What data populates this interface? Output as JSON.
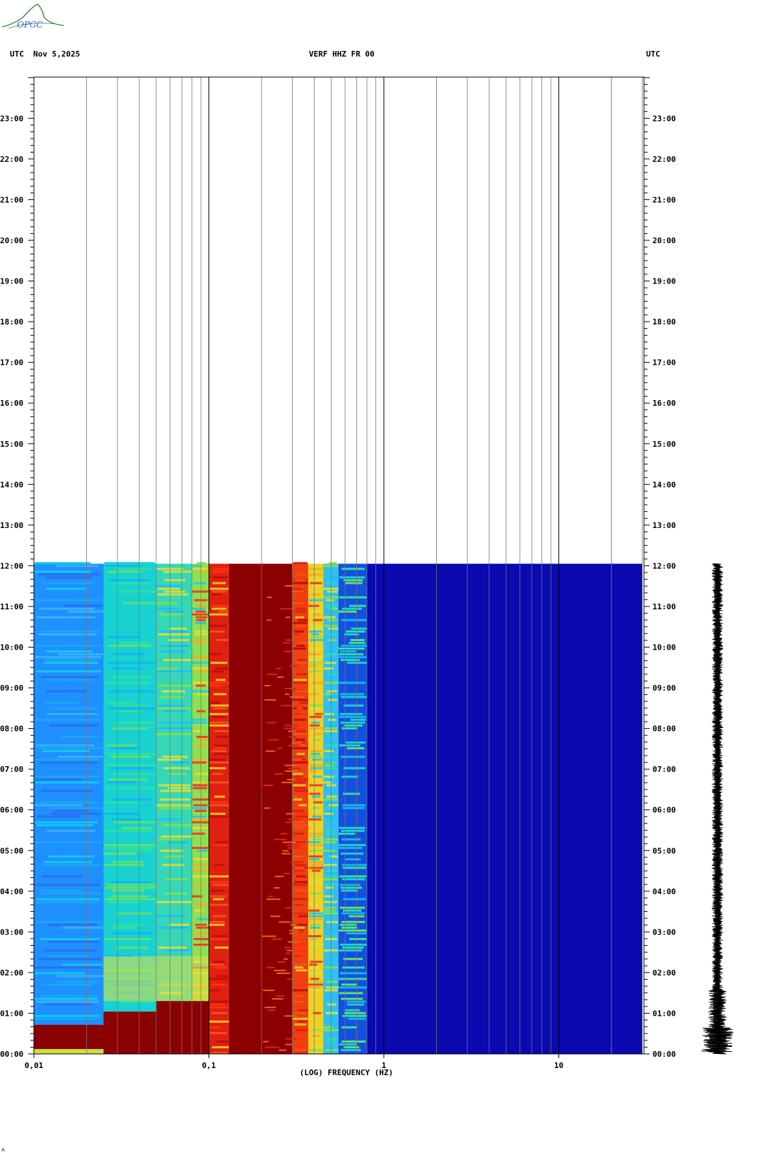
{
  "header": {
    "left_tz": "UTC",
    "date": "Nov 5,2025",
    "station": "VERF HHZ FR 00",
    "right_tz": "UTC"
  },
  "logo": {
    "text": "OPGC",
    "color": "#2e8b3a"
  },
  "corner_mark": "ʌ",
  "chart_data": {
    "type": "heatmap",
    "title": "VERF HHZ FR 00",
    "xlabel": "(LOG) FREQUENCY (HZ)",
    "x_scale": "log",
    "xlim": [
      0.01,
      30
    ],
    "x_ticks": [
      {
        "value": 0.01,
        "label": "0,01"
      },
      {
        "value": 0.1,
        "label": "0,1"
      },
      {
        "value": 1,
        "label": "1"
      },
      {
        "value": 10,
        "label": "10"
      }
    ],
    "y_unit": "hour UTC",
    "ylim": [
      0,
      24
    ],
    "y_ticks": [
      {
        "value": 0,
        "label": "00:00"
      },
      {
        "value": 1,
        "label": "01:00"
      },
      {
        "value": 2,
        "label": "02:00"
      },
      {
        "value": 3,
        "label": "03:00"
      },
      {
        "value": 4,
        "label": "04:00"
      },
      {
        "value": 5,
        "label": "05:00"
      },
      {
        "value": 6,
        "label": "06:00"
      },
      {
        "value": 7,
        "label": "07:00"
      },
      {
        "value": 8,
        "label": "08:00"
      },
      {
        "value": 9,
        "label": "09:00"
      },
      {
        "value": 10,
        "label": "10:00"
      },
      {
        "value": 11,
        "label": "11:00"
      },
      {
        "value": 12,
        "label": "12:00"
      },
      {
        "value": 13,
        "label": "13:00"
      },
      {
        "value": 14,
        "label": "14:00"
      },
      {
        "value": 15,
        "label": "15:00"
      },
      {
        "value": 16,
        "label": "16:00"
      },
      {
        "value": 17,
        "label": "17:00"
      },
      {
        "value": 18,
        "label": "18:00"
      },
      {
        "value": 19,
        "label": "19:00"
      },
      {
        "value": 20,
        "label": "20:00"
      },
      {
        "value": 21,
        "label": "21:00"
      },
      {
        "value": 22,
        "label": "22:00"
      },
      {
        "value": 23,
        "label": "23:00"
      }
    ],
    "data_end_hour": 12.05,
    "grid": true,
    "frequency_bands": [
      {
        "f_min": 0.01,
        "f_max": 0.025,
        "level": "low",
        "color": "#1e90ff"
      },
      {
        "f_min": 0.025,
        "f_max": 0.05,
        "level": "low-mid",
        "color": "#18d2d2"
      },
      {
        "f_min": 0.05,
        "f_max": 0.08,
        "level": "mid",
        "color": "#34d8b8"
      },
      {
        "f_min": 0.08,
        "f_max": 0.1,
        "level": "mid-high",
        "color": "#8fe050"
      },
      {
        "f_min": 0.1,
        "f_max": 0.13,
        "level": "high",
        "color": "#e02010"
      },
      {
        "f_min": 0.13,
        "f_max": 0.3,
        "level": "max",
        "color": "#8b0000"
      },
      {
        "f_min": 0.3,
        "f_max": 0.37,
        "level": "high",
        "color": "#f04010"
      },
      {
        "f_min": 0.37,
        "f_max": 0.45,
        "level": "mid-high",
        "color": "#f0d020"
      },
      {
        "f_min": 0.45,
        "f_max": 0.55,
        "level": "mid",
        "color": "#30c0f0"
      },
      {
        "f_min": 0.55,
        "f_max": 0.8,
        "level": "low-mid",
        "color": "#1450e0"
      },
      {
        "f_min": 0.8,
        "f_max": 30,
        "level": "low",
        "color": "#0a0ab0"
      }
    ],
    "early_hours_band": {
      "hour_max": 1.3,
      "f_max": 0.1,
      "color": "#8b0000"
    },
    "waveform": {
      "trace": "VERF HHZ FR 00",
      "hour_min": 0,
      "hour_max": 12.05,
      "largest_event_hour": 0.35
    }
  }
}
